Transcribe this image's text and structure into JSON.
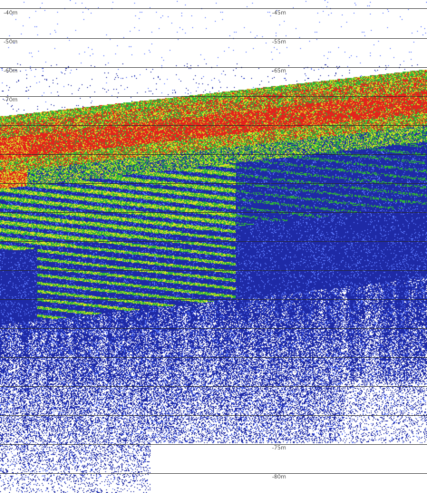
{
  "echogram": {
    "depth_labels": [
      {
        "text": "-40m"
      },
      {
        "text": "-45m"
      },
      {
        "text": "-50m"
      },
      {
        "text": "-55m"
      },
      {
        "text": "-60m"
      },
      {
        "text": "-65m"
      },
      {
        "text": "-70m"
      },
      {
        "text": "-75m"
      },
      {
        "text": "-80m"
      }
    ],
    "colors": {
      "background": "#ffffff",
      "weak_echo": "#1e2aa6",
      "light_echo": "#5a78ff",
      "medium_echo": "#2fb43a",
      "moderate_echo": "#d8e027",
      "strong_echo": "#e3241c",
      "grid_line": "#333333"
    }
  }
}
